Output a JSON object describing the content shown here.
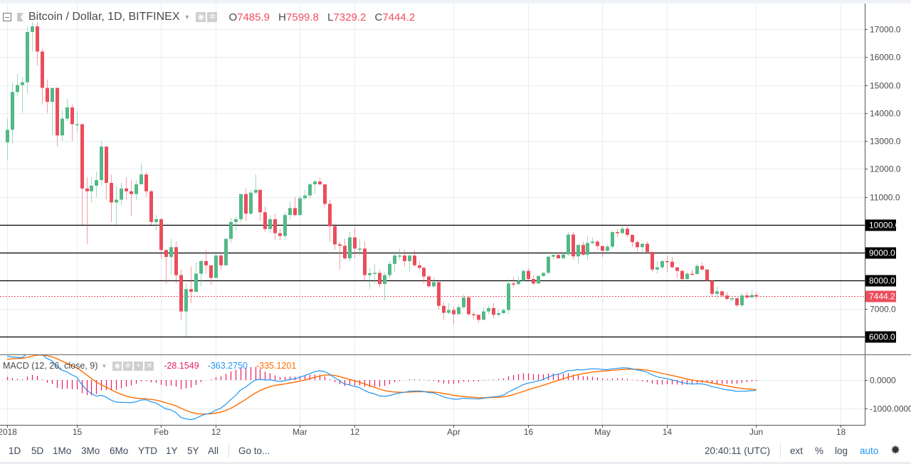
{
  "header": {
    "symbol_title": "Bitcoin / Dollar, 1D, BITFINEX",
    "ohlc": {
      "o_label": "O",
      "o": "7485.9",
      "h_label": "H",
      "h": "7599.8",
      "l_label": "L",
      "l": "7329.2",
      "c_label": "C",
      "c": "7444.2"
    }
  },
  "macd_legend": {
    "title": "MACD (12, 26, close, 9)",
    "histogram": "-28.1549",
    "macd": "-363.2750",
    "signal": "-335.1201"
  },
  "toolbar": {
    "ranges": [
      "1D",
      "5D",
      "1Mo",
      "3Mo",
      "6Mo",
      "YTD",
      "1Y",
      "5Y",
      "All"
    ],
    "goto": "Go to...",
    "clock": "20:40:11 (UTC)",
    "ext": "ext",
    "percent": "%",
    "log": "log",
    "auto": "auto"
  },
  "colors": {
    "up": "#53b987",
    "down": "#eb4d5c",
    "macd": "#2196f3",
    "signal": "#ff6d00",
    "histogram": "#e91e63",
    "auto_active": "#2196f3"
  },
  "icons": [
    "collapse-icon",
    "symbol-flag-icon",
    "dropdown-caret-icon",
    "eye-icon",
    "gear-icon",
    "plus-icon",
    "close-icon",
    "settings-gear-icon"
  ],
  "chart_data": [
    {
      "type": "candlestick",
      "title": "Bitcoin / Dollar, 1D, BITFINEX",
      "x_start": "2018-01-01",
      "x_end": "2018-06-01",
      "x_ticks": [
        "2018",
        "15",
        "Feb",
        "12",
        "Mar",
        "12",
        "Apr",
        "16",
        "May",
        "14",
        "Jun",
        "18"
      ],
      "y_ticks": [
        "7000.0",
        "8000.0",
        "9000.0",
        "10000.0",
        "11000.0",
        "12000.0",
        "13000.0",
        "14000.0",
        "15000.0",
        "16000.0",
        "17000.0"
      ],
      "ylim": [
        5400,
        17900
      ],
      "grid": true,
      "horizontal_lines": [
        {
          "value": 10000,
          "label": "10000.0"
        },
        {
          "value": 9000,
          "label": "9000.0"
        },
        {
          "value": 8000,
          "label": "8000.0"
        },
        {
          "value": 6000,
          "label": "6000.0"
        }
      ],
      "last_price": {
        "value": 7444.2,
        "label": "7444.2"
      },
      "first_open": 12950,
      "close": [
        13400,
        14750,
        15000,
        15100,
        16900,
        17100,
        16200,
        14900,
        14400,
        14900,
        13200,
        13800,
        14200,
        13600,
        13600,
        11300,
        11200,
        11400,
        11600,
        12800,
        11500,
        10800,
        10900,
        11300,
        11200,
        11100,
        11450,
        11800,
        11200,
        10100,
        10200,
        9100,
        8850,
        9200,
        8200,
        6900,
        7700,
        7600,
        8250,
        8700,
        8550,
        8100,
        8900,
        8550,
        9500,
        10100,
        10200,
        11100,
        10400,
        11150,
        11250,
        10450,
        9850,
        10200,
        9700,
        9600,
        10350,
        10600,
        10350,
        10950,
        11050,
        11450,
        11550,
        11450,
        10750,
        9950,
        9300,
        9250,
        8800,
        9550,
        9150,
        9150,
        8200,
        8270,
        8280,
        7880,
        8200,
        8600,
        8900,
        8900,
        8700,
        8900,
        8550,
        8460,
        8150,
        7800,
        7950,
        7100,
        6850,
        6950,
        6800,
        7050,
        7400,
        6800,
        6780,
        6600,
        6900,
        7020,
        6780,
        6840,
        6950,
        7900,
        7880,
        8000,
        8350,
        8060,
        7900,
        8170,
        8280,
        8860,
        8920,
        8800,
        8940,
        9650,
        8870,
        9280,
        8930,
        9350,
        9400,
        9240,
        9070,
        9220,
        9740,
        9700,
        9860,
        9640,
        9380,
        9200,
        9320,
        9030,
        8400,
        8480,
        8700,
        8680,
        8480,
        8350,
        8060,
        8250,
        8240,
        8530,
        8400,
        8000,
        7530,
        7620,
        7470,
        7350,
        7370,
        7120,
        7470,
        7400,
        7485.9,
        7444.2
      ],
      "high": [
        13800,
        15100,
        15400,
        15300,
        17100,
        17250,
        17250,
        16300,
        15200,
        14900,
        14900,
        14100,
        14500,
        14300,
        14050,
        13600,
        11700,
        11700,
        11900,
        13000,
        12800,
        11800,
        11400,
        11500,
        11700,
        11600,
        11600,
        12200,
        11900,
        11250,
        10350,
        10250,
        9100,
        9500,
        9400,
        8400,
        7900,
        8500,
        8650,
        8750,
        9100,
        8550,
        8950,
        8950,
        9500,
        10250,
        10300,
        11100,
        11300,
        11250,
        11800,
        11250,
        10650,
        10350,
        10400,
        9850,
        10450,
        10850,
        11000,
        11050,
        11250,
        11500,
        11600,
        11700,
        11450,
        10900,
        10050,
        9400,
        9500,
        9750,
        9900,
        9500,
        9400,
        8450,
        8600,
        8400,
        8300,
        8700,
        9050,
        9150,
        9100,
        8950,
        9100,
        8700,
        8500,
        8200,
        8100,
        7950,
        7250,
        7200,
        7050,
        7150,
        7500,
        7450,
        6900,
        6800,
        7050,
        7100,
        7200,
        6950,
        7000,
        8050,
        8150,
        8150,
        8400,
        8450,
        8200,
        8200,
        8300,
        8900,
        9000,
        9000,
        9000,
        9750,
        9750,
        9300,
        9400,
        9600,
        9550,
        9450,
        9250,
        9300,
        9800,
        9850,
        10000,
        10000,
        9650,
        9450,
        9350,
        9400,
        9030,
        8700,
        8750,
        8900,
        8850,
        8480,
        8400,
        8300,
        8400,
        8600,
        8650,
        8400,
        8000,
        7800,
        7650,
        7600,
        7400,
        7400,
        7550,
        7600,
        7650,
        7599.8
      ],
      "low": [
        12300,
        12900,
        14600,
        14000,
        14700,
        16200,
        15700,
        14300,
        14000,
        13200,
        12800,
        13000,
        13700,
        13000,
        13300,
        10000,
        9300,
        10800,
        11000,
        11400,
        10900,
        10100,
        10000,
        10700,
        10900,
        10300,
        10900,
        11450,
        11000,
        10000,
        9800,
        8800,
        7900,
        8200,
        7900,
        6600,
        6000,
        7200,
        7700,
        7800,
        8250,
        7850,
        8100,
        8400,
        8550,
        9350,
        9800,
        10100,
        10150,
        10350,
        11100,
        10150,
        9750,
        9700,
        9450,
        9450,
        9450,
        10200,
        10300,
        10300,
        10900,
        10950,
        11100,
        11400,
        10650,
        9400,
        9100,
        8400,
        8750,
        8700,
        8800,
        8900,
        8000,
        7700,
        7900,
        7750,
        7300,
        8100,
        8300,
        8750,
        8500,
        8300,
        8500,
        8400,
        7900,
        7750,
        7750,
        6950,
        6600,
        6800,
        6450,
        6800,
        7000,
        6750,
        6600,
        6500,
        6600,
        6800,
        6650,
        6700,
        6800,
        6800,
        7750,
        7850,
        8000,
        8000,
        7850,
        7900,
        8150,
        8250,
        8750,
        8800,
        8800,
        8900,
        8750,
        8600,
        8900,
        8750,
        9300,
        9100,
        8850,
        8950,
        9150,
        9550,
        9700,
        9550,
        9200,
        9050,
        8950,
        9000,
        8300,
        8250,
        8400,
        8300,
        8450,
        8100,
        8000,
        8000,
        8200,
        8200,
        8350,
        7980,
        7450,
        7350,
        7400,
        7300,
        7250,
        7050,
        7050,
        7350,
        7450,
        7329.2
      ]
    },
    {
      "type": "line",
      "title": "MACD (12, 26, close, 9)",
      "series": [
        "MACD",
        "Signal",
        "Histogram"
      ],
      "y_ticks": [
        "0.0000",
        "-1000.0000"
      ],
      "ylim": [
        -1600,
        900
      ],
      "last_values": {
        "histogram": -28.1549,
        "macd": -363.275,
        "signal": -335.1201
      }
    }
  ]
}
